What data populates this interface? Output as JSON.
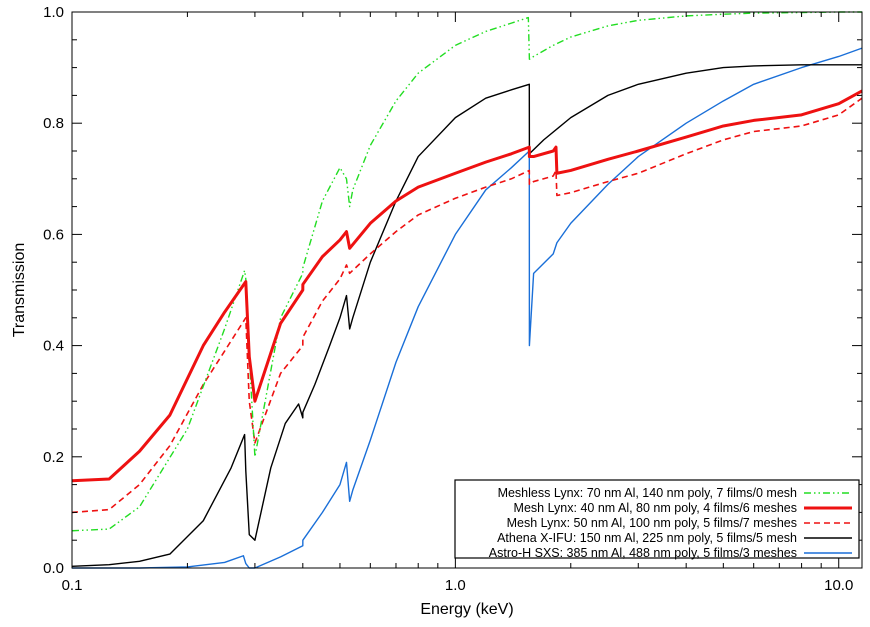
{
  "chart_data": {
    "type": "line",
    "xlabel": "Energy (keV)",
    "ylabel": "Transmission",
    "x_scale": "log",
    "xlim": [
      0.1,
      11.5
    ],
    "ylim": [
      0.0,
      1.0
    ],
    "x_major_ticks": [
      0.1,
      1.0,
      10.0
    ],
    "x_tick_labels": [
      "0.1",
      "1.0",
      "10.0"
    ],
    "y_major_ticks": [
      0.0,
      0.2,
      0.4,
      0.6,
      0.8,
      1.0
    ],
    "y_tick_labels": [
      "0.0",
      "0.2",
      "0.4",
      "0.6",
      "0.8",
      "1.0"
    ],
    "grid": false,
    "legend_position": "bottom-right",
    "series": [
      {
        "name": "Meshless Lynx: 70 nm Al, 140 nm poly, 7 films/0 mesh",
        "color": "#22dd22",
        "style": "dash-dot-dot",
        "x": [
          0.1,
          0.125,
          0.15,
          0.2,
          0.25,
          0.282,
          0.284,
          0.29,
          0.3,
          0.35,
          0.4,
          0.4001,
          0.45,
          0.5,
          0.52,
          0.53,
          0.54,
          0.6,
          0.7,
          0.8,
          1.0,
          1.2,
          1.4,
          1.55,
          1.56,
          1.6,
          1.8,
          2.0,
          2.5,
          3.0,
          4.0,
          5.0,
          6.0,
          8.0,
          10.0,
          11.5
        ],
        "y": [
          0.067,
          0.07,
          0.11,
          0.25,
          0.43,
          0.535,
          0.52,
          0.38,
          0.2,
          0.45,
          0.53,
          0.54,
          0.66,
          0.72,
          0.7,
          0.65,
          0.68,
          0.76,
          0.84,
          0.89,
          0.94,
          0.965,
          0.98,
          0.99,
          0.915,
          0.92,
          0.94,
          0.955,
          0.975,
          0.985,
          0.993,
          0.996,
          0.998,
          0.999,
          1.0,
          1.0
        ]
      },
      {
        "name": "Mesh Lynx: 40 nm Al, 80 nm poly, 4 films/6 meshes",
        "color": "#ee1111",
        "style": "solid-thick",
        "x": [
          0.1,
          0.125,
          0.15,
          0.18,
          0.22,
          0.25,
          0.284,
          0.286,
          0.29,
          0.3,
          0.35,
          0.4,
          0.4001,
          0.45,
          0.5,
          0.52,
          0.53,
          0.6,
          0.7,
          0.8,
          1.0,
          1.2,
          1.4,
          1.559,
          1.56,
          1.6,
          1.8,
          1.83,
          1.84,
          2.0,
          2.5,
          3.0,
          4.0,
          5.0,
          6.0,
          8.0,
          10.0,
          11.5
        ],
        "y": [
          0.157,
          0.16,
          0.21,
          0.275,
          0.4,
          0.46,
          0.515,
          0.47,
          0.38,
          0.3,
          0.44,
          0.5,
          0.51,
          0.56,
          0.59,
          0.605,
          0.575,
          0.62,
          0.66,
          0.685,
          0.71,
          0.73,
          0.745,
          0.757,
          0.74,
          0.74,
          0.75,
          0.757,
          0.71,
          0.715,
          0.735,
          0.75,
          0.775,
          0.795,
          0.805,
          0.815,
          0.835,
          0.858
        ]
      },
      {
        "name": "Mesh Lynx: 50 nm Al, 100 nm poly, 5 films/7 meshes",
        "color": "#ee1111",
        "style": "dashed",
        "x": [
          0.1,
          0.125,
          0.15,
          0.18,
          0.22,
          0.25,
          0.284,
          0.286,
          0.29,
          0.3,
          0.35,
          0.4,
          0.4001,
          0.45,
          0.5,
          0.52,
          0.53,
          0.6,
          0.7,
          0.8,
          1.0,
          1.2,
          1.4,
          1.559,
          1.56,
          1.6,
          1.8,
          1.83,
          1.84,
          2.0,
          2.5,
          3.0,
          4.0,
          5.0,
          6.0,
          8.0,
          10.0,
          11.5
        ],
        "y": [
          0.1,
          0.105,
          0.15,
          0.22,
          0.33,
          0.39,
          0.45,
          0.4,
          0.3,
          0.225,
          0.35,
          0.4,
          0.415,
          0.48,
          0.52,
          0.545,
          0.53,
          0.565,
          0.605,
          0.635,
          0.665,
          0.685,
          0.7,
          0.715,
          0.69,
          0.695,
          0.705,
          0.715,
          0.67,
          0.675,
          0.695,
          0.71,
          0.745,
          0.77,
          0.785,
          0.795,
          0.815,
          0.845
        ]
      },
      {
        "name": "Athena X-IFU: 150 nm Al, 225 nm poly, 5 films/5 mesh",
        "color": "#000000",
        "style": "solid",
        "x": [
          0.1,
          0.125,
          0.15,
          0.18,
          0.22,
          0.26,
          0.282,
          0.284,
          0.29,
          0.3,
          0.33,
          0.36,
          0.39,
          0.4,
          0.4001,
          0.43,
          0.47,
          0.5,
          0.52,
          0.53,
          0.54,
          0.6,
          0.7,
          0.8,
          1.0,
          1.2,
          1.4,
          1.559,
          1.56,
          1.7,
          2.0,
          2.5,
          3.0,
          4.0,
          5.0,
          6.0,
          8.0,
          10.0,
          11.5
        ],
        "y": [
          0.003,
          0.006,
          0.012,
          0.025,
          0.085,
          0.18,
          0.24,
          0.175,
          0.06,
          0.05,
          0.18,
          0.26,
          0.295,
          0.27,
          0.28,
          0.33,
          0.4,
          0.45,
          0.49,
          0.43,
          0.45,
          0.55,
          0.66,
          0.74,
          0.81,
          0.845,
          0.86,
          0.87,
          0.745,
          0.77,
          0.81,
          0.85,
          0.87,
          0.89,
          0.9,
          0.903,
          0.905,
          0.905,
          0.905
        ]
      },
      {
        "name": "Astro-H SXS: 385 nm Al, 488 nm poly, 5 films/3 meshes",
        "color": "#1a6fd8",
        "style": "solid",
        "x": [
          0.1,
          0.15,
          0.2,
          0.25,
          0.28,
          0.284,
          0.29,
          0.3,
          0.35,
          0.4,
          0.4001,
          0.45,
          0.5,
          0.52,
          0.53,
          0.54,
          0.6,
          0.7,
          0.8,
          1.0,
          1.2,
          1.4,
          1.559,
          1.56,
          1.6,
          1.8,
          1.84,
          2.0,
          2.5,
          3.0,
          4.0,
          5.0,
          6.0,
          8.0,
          10.0,
          11.5
        ],
        "y": [
          0.0,
          0.0,
          0.002,
          0.01,
          0.022,
          0.008,
          0.0,
          0.0,
          0.02,
          0.04,
          0.05,
          0.1,
          0.15,
          0.19,
          0.12,
          0.14,
          0.23,
          0.37,
          0.47,
          0.6,
          0.68,
          0.72,
          0.75,
          0.4,
          0.53,
          0.565,
          0.585,
          0.62,
          0.69,
          0.74,
          0.8,
          0.84,
          0.87,
          0.9,
          0.92,
          0.935
        ]
      }
    ]
  }
}
